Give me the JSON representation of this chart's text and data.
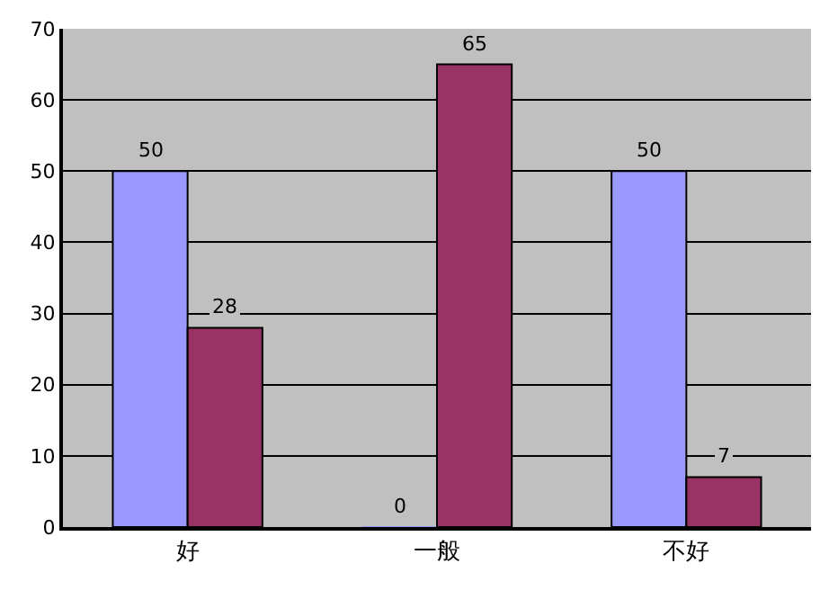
{
  "chart_data": {
    "type": "bar",
    "categories": [
      "好",
      "一般",
      "不好"
    ],
    "series": [
      {
        "color": "#9999ff",
        "values": [
          50,
          0,
          50
        ]
      },
      {
        "color": "#993366",
        "values": [
          28,
          65,
          7
        ]
      }
    ],
    "ylim": [
      0,
      70
    ],
    "yticks": [
      0,
      10,
      20,
      30,
      40,
      50,
      60,
      70
    ],
    "grid": "y",
    "data_labels": true
  }
}
